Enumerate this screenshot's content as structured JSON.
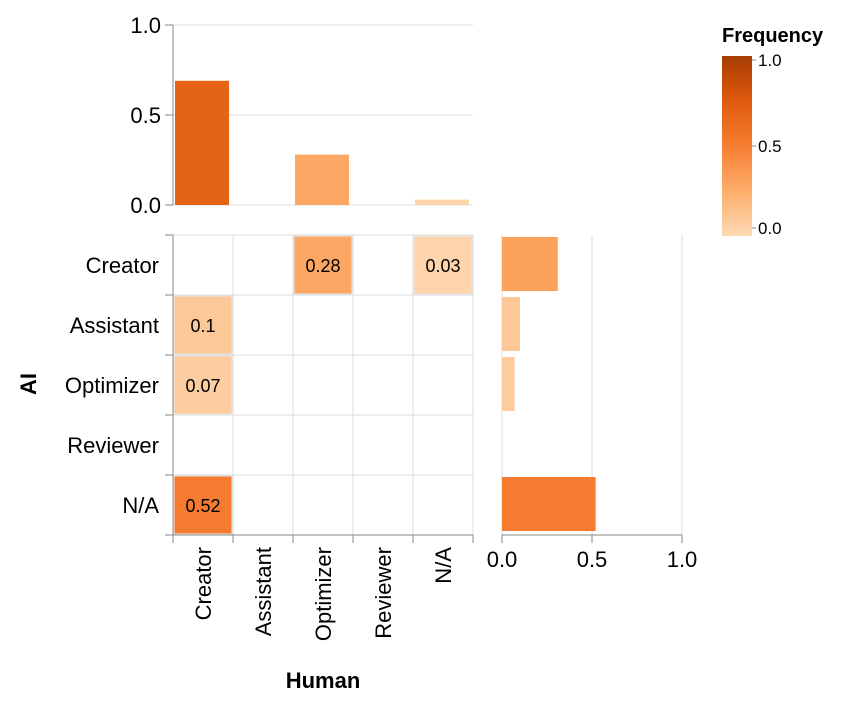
{
  "chart_data": {
    "type": "heatmap",
    "xlabel": "Human",
    "ylabel": "AI",
    "x_categories": [
      "Creator",
      "Assistant",
      "Optimizer",
      "Reviewer",
      "N/A"
    ],
    "y_categories": [
      "Creator",
      "Assistant",
      "Optimizer",
      "Reviewer",
      "N/A"
    ],
    "cells": [
      {
        "x": "Optimizer",
        "y": "Creator",
        "value": 0.28,
        "label": "0.28"
      },
      {
        "x": "N/A",
        "y": "Creator",
        "value": 0.03,
        "label": "0.03"
      },
      {
        "x": "Creator",
        "y": "Assistant",
        "value": 0.1,
        "label": "0.1"
      },
      {
        "x": "Creator",
        "y": "Optimizer",
        "value": 0.07,
        "label": "0.07"
      },
      {
        "x": "Creator",
        "y": "N/A",
        "value": 0.52,
        "label": "0.52"
      }
    ],
    "top_marginal": {
      "type": "bar",
      "categories": [
        "Creator",
        "Assistant",
        "Optimizer",
        "Reviewer",
        "N/A"
      ],
      "values": [
        0.69,
        0,
        0.28,
        0,
        0.03
      ],
      "ylim": [
        0,
        1
      ],
      "ticks": [
        "0.0",
        "0.5",
        "1.0"
      ]
    },
    "right_marginal": {
      "type": "bar",
      "orientation": "horizontal",
      "categories": [
        "Creator",
        "Assistant",
        "Optimizer",
        "Reviewer",
        "N/A"
      ],
      "values": [
        0.31,
        0.1,
        0.07,
        0,
        0.52
      ],
      "xlim": [
        0,
        1
      ],
      "ticks": [
        "0.0",
        "0.5",
        "1.0"
      ]
    },
    "legend": {
      "title": "Frequency",
      "range": [
        0,
        1
      ],
      "ticks": [
        "1.0",
        "0.5",
        "0.0"
      ],
      "placement": "top-right"
    }
  },
  "colors": {
    "scale": [
      "#fdd9b4",
      "#fdae6b",
      "#f67e32",
      "#e05a0c",
      "#a53d03"
    ],
    "grid": "#dddddd",
    "axis": "#888888"
  }
}
